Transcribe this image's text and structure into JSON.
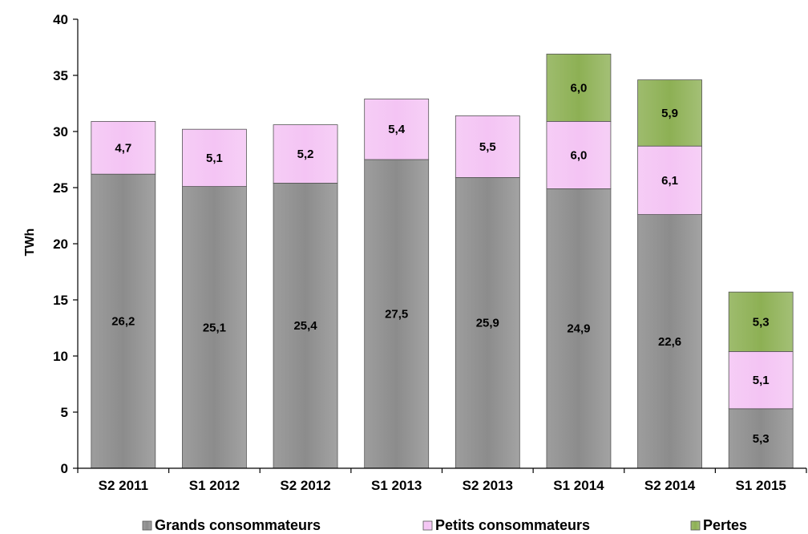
{
  "chart_data": {
    "type": "bar",
    "stacked": true,
    "title": "",
    "xlabel": "",
    "ylabel": "TWh",
    "ylim": [
      0,
      40
    ],
    "yticks": [
      "0",
      "5",
      "10",
      "15",
      "20",
      "25",
      "30",
      "35",
      "40"
    ],
    "grid": false,
    "legend_position": "bottom",
    "categories": [
      "S2 2011",
      "S1 2012",
      "S2 2012",
      "S1 2013",
      "S2 2013",
      "S1 2014",
      "S2 2014",
      "S1 2015"
    ],
    "series": [
      {
        "name": "Grands consommateurs",
        "color": "#8c8c8c",
        "values": [
          26.2,
          25.1,
          25.4,
          27.5,
          25.9,
          24.9,
          22.6,
          5.3
        ],
        "labels": [
          "26,2",
          "25,1",
          "25,4",
          "27,5",
          "25,9",
          "24,9",
          "22,6",
          "5,3"
        ]
      },
      {
        "name": "Petits consommateurs",
        "color": "#f4c4f4",
        "values": [
          4.7,
          5.1,
          5.2,
          5.4,
          5.5,
          6.0,
          6.1,
          5.1
        ],
        "labels": [
          "4,7",
          "5,1",
          "5,2",
          "5,4",
          "5,5",
          "6,0",
          "6,1",
          "5,1"
        ]
      },
      {
        "name": "Pertes",
        "color": "#8db054",
        "values": [
          null,
          null,
          null,
          null,
          null,
          6.0,
          5.9,
          5.3
        ],
        "labels": [
          "",
          "",
          "",
          "",
          "",
          "6,0",
          "5,9",
          "5,3"
        ]
      }
    ]
  }
}
